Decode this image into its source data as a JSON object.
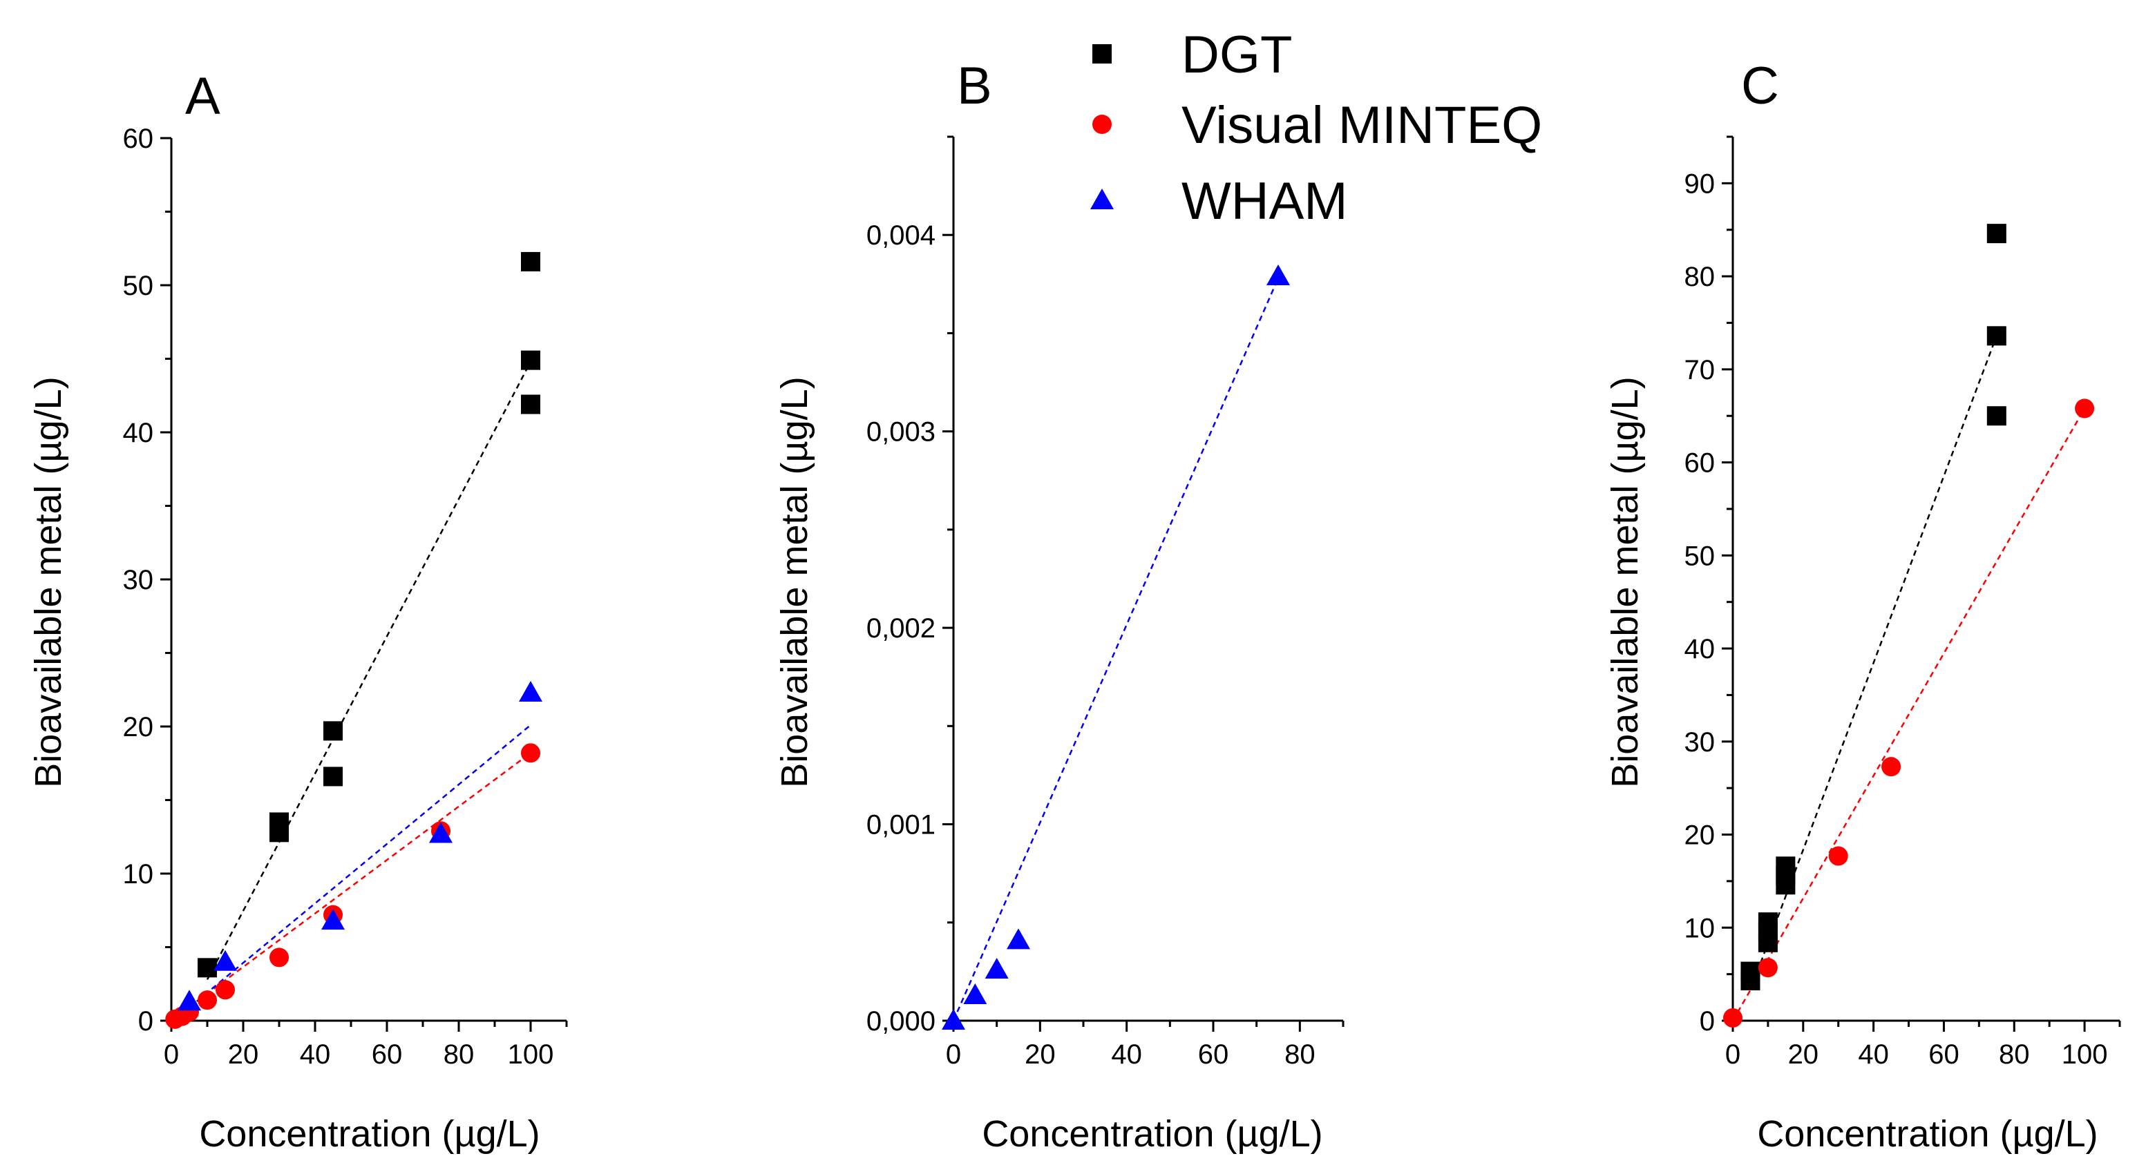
{
  "chart_data": [
    {
      "panel_label": "A",
      "type": "scatter",
      "xlabel": "Concentration (µg/L)",
      "ylabel": "Bioavailable metal (µg/L)",
      "xlim": [
        0,
        110
      ],
      "ylim": [
        0,
        60
      ],
      "xticks": [
        0,
        20,
        40,
        60,
        80,
        100
      ],
      "xtick_labels": [
        "0",
        "20",
        "40",
        "60",
        "80",
        "100"
      ],
      "yticks": [
        0,
        10,
        20,
        30,
        40,
        50,
        60
      ],
      "ytick_labels": [
        "0",
        "10",
        "20",
        "30",
        "40",
        "50",
        "60"
      ],
      "series": [
        {
          "name": "DGT",
          "marker": "square",
          "x": [
            10,
            30,
            30,
            45,
            45,
            100,
            100,
            100
          ],
          "y": [
            3.6,
            12.8,
            13.5,
            16.6,
            19.7,
            41.9,
            44.9,
            51.6
          ],
          "fit": {
            "x": [
              10,
              100
            ],
            "y": [
              2.8,
              44.8
            ]
          }
        },
        {
          "name": "Visual MINTEQ",
          "marker": "circle",
          "x": [
            1,
            3,
            5,
            10,
            15,
            30,
            45,
            75,
            100
          ],
          "y": [
            0.1,
            0.3,
            0.6,
            1.4,
            2.1,
            4.3,
            7.2,
            12.9,
            18.2
          ],
          "fit": {
            "x": [
              1,
              100
            ],
            "y": [
              0.2,
              18.2
            ]
          }
        },
        {
          "name": "WHAM",
          "marker": "triangle",
          "x": [
            5,
            15,
            45,
            75,
            100
          ],
          "y": [
            1.3,
            4.0,
            6.8,
            12.7,
            22.3
          ],
          "fit": {
            "x": [
              5,
              100
            ],
            "y": [
              0.9,
              20.1
            ]
          }
        }
      ]
    },
    {
      "panel_label": "B",
      "type": "scatter",
      "xlabel": "Concentration (µg/L)",
      "ylabel": "Bioavailable metal (µg/L)",
      "xlim": [
        0,
        90
      ],
      "ylim": [
        0,
        0.0045
      ],
      "xticks": [
        0,
        20,
        40,
        60,
        80
      ],
      "xtick_labels": [
        "0",
        "20",
        "40",
        "60",
        "80"
      ],
      "yticks": [
        0,
        0.001,
        0.002,
        0.003,
        0.004
      ],
      "ytick_labels": [
        "0,000",
        "0,001",
        "0,002",
        "0,003",
        "0,004"
      ],
      "series": [
        {
          "name": "WHAM",
          "marker": "triangle",
          "x": [
            0,
            5,
            10,
            15,
            75
          ],
          "y": [
            0.0,
            0.00013,
            0.00026,
            0.00041,
            0.00379
          ],
          "fit": {
            "x": [
              0,
              75
            ],
            "y": [
              0.0,
              0.00378
            ]
          }
        }
      ]
    },
    {
      "panel_label": "C",
      "type": "scatter",
      "xlabel": "Concentration (µg/L)",
      "ylabel": "Bioavailable metal (µg/L)",
      "xlim": [
        0,
        110
      ],
      "ylim": [
        0,
        95
      ],
      "xticks": [
        0,
        20,
        40,
        60,
        80,
        100
      ],
      "xtick_labels": [
        "0",
        "20",
        "40",
        "60",
        "80",
        "100"
      ],
      "yticks": [
        0,
        10,
        20,
        30,
        40,
        50,
        60,
        70,
        80,
        90
      ],
      "ytick_labels": [
        "0",
        "10",
        "20",
        "30",
        "40",
        "50",
        "60",
        "70",
        "80",
        "90"
      ],
      "series": [
        {
          "name": "DGT",
          "marker": "square",
          "x": [
            5,
            5,
            10,
            10,
            10,
            15,
            15,
            15,
            75,
            75,
            75
          ],
          "y": [
            4.3,
            5.3,
            8.4,
            9.6,
            10.6,
            14.6,
            15.6,
            16.6,
            65.0,
            73.6,
            84.6
          ],
          "fit": {
            "x": [
              5,
              75
            ],
            "y": [
              3.3,
              73.6
            ]
          }
        },
        {
          "name": "Visual MINTEQ",
          "marker": "circle",
          "x": [
            0,
            10,
            30,
            45,
            100
          ],
          "y": [
            0.3,
            5.7,
            17.7,
            27.3,
            65.8
          ],
          "fit": {
            "x": [
              0,
              100
            ],
            "y": [
              0.0,
              65.8
            ]
          }
        }
      ]
    }
  ],
  "legend": {
    "position": "top-center",
    "entries": [
      {
        "label": "DGT",
        "marker": "square",
        "color": "#000000"
      },
      {
        "label": "Visual MINTEQ",
        "marker": "circle",
        "color": "#ff0000"
      },
      {
        "label": "WHAM",
        "marker": "triangle",
        "color": "#0000ff"
      }
    ]
  },
  "colors": {
    "DGT": "#000000",
    "Visual MINTEQ": "#ff0000",
    "WHAM": "#0000ff"
  }
}
